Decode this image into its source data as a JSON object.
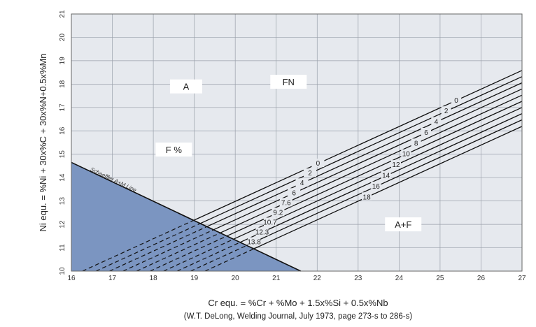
{
  "chart_data": {
    "type": "line",
    "title": "",
    "xlabel": "Cr equ. = %Cr + %Mo + 1.5x%Si + 0.5x%Nb",
    "ylabel": "Ni equ. = %Ni + 30x%C + 30x%N+0.5x%Mn",
    "source": "(W.T. DeLong, Welding Journal, July 1973, page 273-s to 286-s)",
    "xlim": [
      16,
      27
    ],
    "ylim": [
      10,
      21
    ],
    "xticks": [
      "16",
      "17",
      "18",
      "19",
      "20",
      "21",
      "22",
      "23",
      "24",
      "25",
      "26",
      "27"
    ],
    "yticks": [
      "10",
      "11",
      "12",
      "13",
      "14",
      "15",
      "16",
      "17",
      "18",
      "19",
      "20",
      "21"
    ],
    "grid": true,
    "colors": {
      "plot_bg": "#e6e9ee",
      "grid": "#9aa0aa",
      "shaded": "#7b95c1",
      "line": "#111111"
    },
    "schaeffler_line": {
      "name": "Schaeffler A+M Line",
      "points": [
        [
          16,
          14.65
        ],
        [
          21.6,
          10
        ]
      ]
    },
    "regions": [
      {
        "label": "A",
        "x": 18.8,
        "y": 17.9
      },
      {
        "label": "FN",
        "x": 21.3,
        "y": 18.1
      },
      {
        "label": "F %",
        "x": 18.5,
        "y": 15.2
      },
      {
        "label": "A+F",
        "x": 24.1,
        "y": 12.0
      }
    ],
    "fn_slope": 0.8,
    "series": [
      {
        "name": "0",
        "fn": "0",
        "fp": "0",
        "x_at_y10": 16.27
      },
      {
        "name": "2",
        "fn": "2",
        "fp": "2",
        "x_at_y10": 16.6
      },
      {
        "name": "4",
        "fn": "4",
        "fp": "4",
        "x_at_y10": 16.93
      },
      {
        "name": "6",
        "fn": "6",
        "fp": "6",
        "x_at_y10": 17.26
      },
      {
        "name": "8",
        "fn": "8",
        "fp": "7.6",
        "x_at_y10": 17.59
      },
      {
        "name": "10",
        "fn": "10",
        "fp": "9.2",
        "x_at_y10": 17.92
      },
      {
        "name": "12",
        "fn": "12",
        "fp": "10.7",
        "x_at_y10": 18.25
      },
      {
        "name": "14",
        "fn": "14",
        "fp": "12.3",
        "x_at_y10": 18.58
      },
      {
        "name": "16",
        "fn": "16",
        "fp": "13.8",
        "x_at_y10": 18.91
      },
      {
        "name": "18",
        "fn": "18",
        "fp": "",
        "x_at_y10": 19.26
      }
    ]
  }
}
